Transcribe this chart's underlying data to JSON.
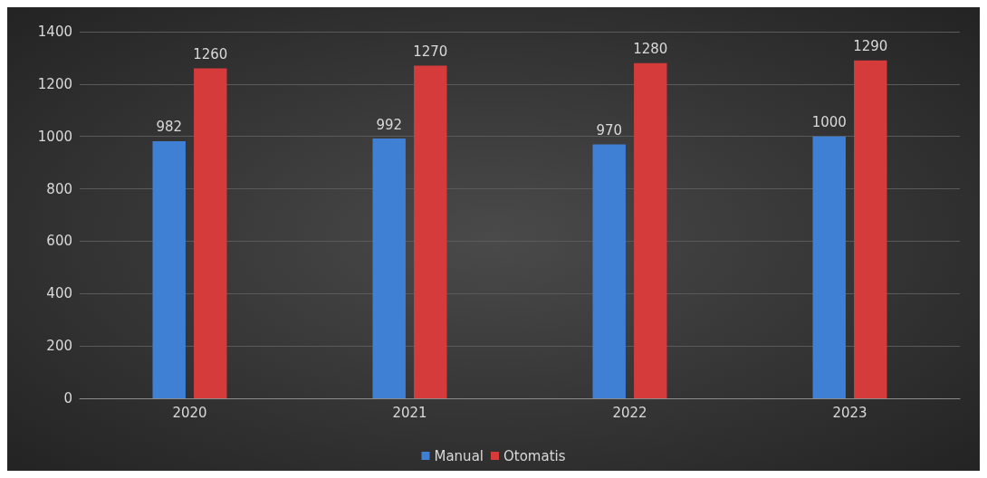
{
  "chart_data": {
    "type": "bar",
    "categories": [
      "2020",
      "2021",
      "2022",
      "2023"
    ],
    "series": [
      {
        "name": "Manual",
        "color": "#3f7fd4",
        "values": [
          982,
          992,
          970,
          1000
        ]
      },
      {
        "name": "Otomatis",
        "color": "#d63b3b",
        "values": [
          1260,
          1270,
          1280,
          1290
        ]
      }
    ],
    "ylim": [
      0,
      1400
    ],
    "yticks": [
      0,
      200,
      400,
      600,
      800,
      1000,
      1200,
      1400
    ],
    "grid": "y",
    "legend": "bottom",
    "data_labels": true
  }
}
